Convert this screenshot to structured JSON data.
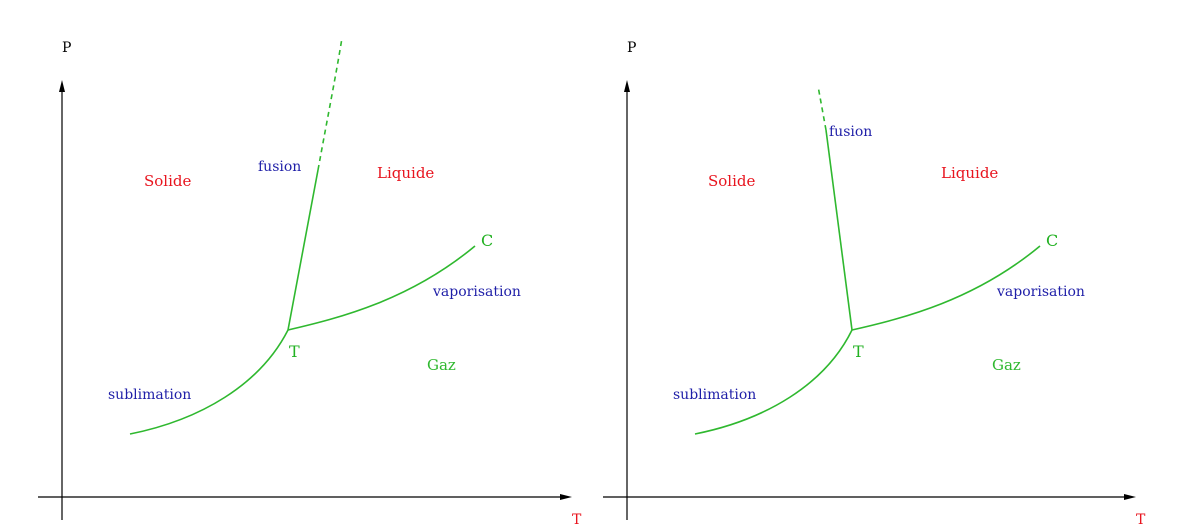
{
  "diagrams": [
    {
      "axis_y_label": "P",
      "axis_x_label": "T",
      "regions": {
        "solid": "Solide",
        "liquid": "Liquide",
        "gas": "Gaz"
      },
      "lines": {
        "fusion": "fusion",
        "vaporisation": "vaporisation",
        "sublimation": "sublimation"
      },
      "points": {
        "triple": "T",
        "critical": "C"
      },
      "colors": {
        "region": "#e8141e",
        "line_name": "#1f1fa8",
        "curve": "#2fb82f",
        "x_axis_label": "#e8141e"
      }
    },
    {
      "axis_y_label": "P",
      "axis_x_label": "T",
      "regions": {
        "solid": "Solide",
        "liquid": "Liquide",
        "gas": "Gaz"
      },
      "lines": {
        "fusion": "fusion",
        "vaporisation": "vaporisation",
        "sublimation": "sublimation"
      },
      "points": {
        "triple": "T",
        "critical": "C"
      },
      "colors": {
        "region": "#e8141e",
        "line_name": "#1f1fa8",
        "curve": "#2fb82f",
        "x_axis_label": "#e8141e"
      }
    }
  ]
}
